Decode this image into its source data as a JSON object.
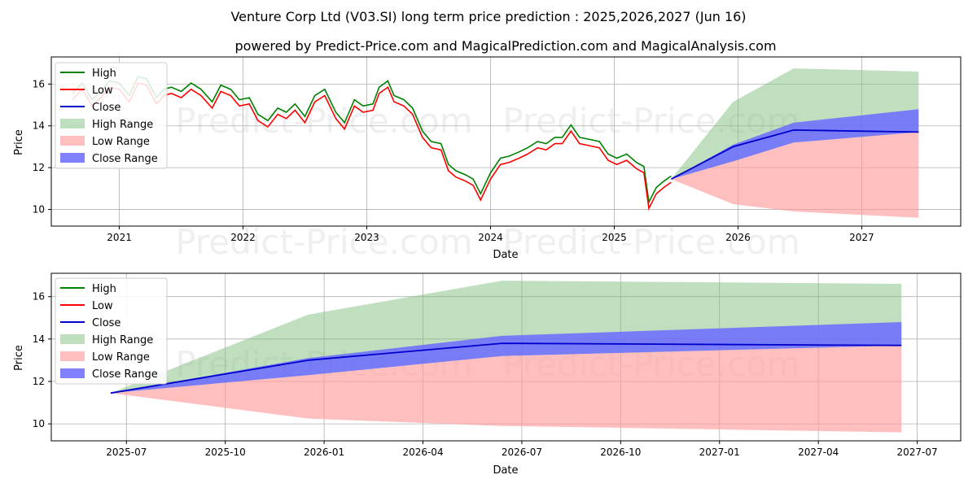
{
  "title": "Venture Corp Ltd (V03.SI) long term price prediction : 2025,2026,2027 (Jun 16)",
  "subtitle": "powered by Predict-Price.com and MagicalPrediction.com and MagicalAnalysis.com",
  "watermark": "Predict-Price.com",
  "colors": {
    "high": "#008000",
    "low": "#ff0000",
    "close": "#0000cc",
    "high_range": "#7fbf7f",
    "low_range": "#ff9c9c",
    "close_range": "#6b6bff"
  },
  "legend": [
    "High",
    "Low",
    "Close",
    "High Range",
    "Low Range",
    "Close Range"
  ],
  "chart_data": [
    {
      "type": "line",
      "panel": "top",
      "xlabel": "Date",
      "ylabel": "Price",
      "xlim": [
        2020.45,
        2027.8
      ],
      "ylim": [
        9.2,
        17.3
      ],
      "x_ticks": [
        2021,
        2022,
        2023,
        2024,
        2025,
        2026,
        2027
      ],
      "x_tick_labels": [
        "2021",
        "2022",
        "2023",
        "2024",
        "2025",
        "2026",
        "2027"
      ],
      "y_ticks": [
        10,
        12,
        14,
        16
      ],
      "history_close": {
        "x": [
          2020.62,
          2020.7,
          2020.78,
          2020.85,
          2020.92,
          2021.0,
          2021.08,
          2021.15,
          2021.22,
          2021.3,
          2021.36,
          2021.42,
          2021.5,
          2021.58,
          2021.66,
          2021.75,
          2021.82,
          2021.9,
          2021.97,
          2022.05,
          2022.12,
          2022.2,
          2022.28,
          2022.35,
          2022.42,
          2022.5,
          2022.58,
          2022.66,
          2022.75,
          2022.82,
          2022.9,
          2022.97,
          2023.05,
          2023.1,
          2023.17,
          2023.22,
          2023.3,
          2023.37,
          2023.45,
          2023.52,
          2023.6,
          2023.66,
          2023.72,
          2023.8,
          2023.86,
          2023.92,
          2024.0,
          2024.08,
          2024.15,
          2024.23,
          2024.3,
          2024.38,
          2024.45,
          2024.52,
          2024.58,
          2024.65,
          2024.72,
          2024.8,
          2024.88,
          2024.95,
          2025.02,
          2025.1,
          2025.18,
          2025.24,
          2025.28,
          2025.34,
          2025.4,
          2025.46
        ],
        "y": [
          15.4,
          15.9,
          15.1,
          15.5,
          16.0,
          15.9,
          15.3,
          16.2,
          16.1,
          15.2,
          15.6,
          15.7,
          15.5,
          15.9,
          15.6,
          15.0,
          15.8,
          15.6,
          15.1,
          15.2,
          14.4,
          14.1,
          14.7,
          14.5,
          14.9,
          14.3,
          15.3,
          15.6,
          14.5,
          14.0,
          15.1,
          14.8,
          14.9,
          15.7,
          16.0,
          15.3,
          15.1,
          14.7,
          13.6,
          13.1,
          13.0,
          12.0,
          11.7,
          11.5,
          11.3,
          10.6,
          11.6,
          12.3,
          12.4,
          12.6,
          12.8,
          13.1,
          13.0,
          13.3,
          13.3,
          13.9,
          13.3,
          13.2,
          13.1,
          12.5,
          12.3,
          12.5,
          12.1,
          11.9,
          10.2,
          10.9,
          11.2,
          11.45
        ]
      },
      "forecast": {
        "x": [
          2025.46,
          2025.96,
          2026.45,
          2027.46
        ],
        "close": [
          11.45,
          13.0,
          13.8,
          13.7
        ],
        "high_range": {
          "upper": [
            11.45,
            15.15,
            16.75,
            16.6
          ],
          "lower": [
            11.45,
            12.3,
            13.2,
            13.7
          ]
        },
        "low_range": {
          "upper": [
            11.45,
            12.3,
            13.2,
            13.7
          ],
          "lower": [
            11.45,
            10.25,
            9.9,
            9.6
          ]
        },
        "close_range": {
          "upper": [
            11.45,
            13.1,
            14.15,
            14.8
          ],
          "lower": [
            11.45,
            12.3,
            13.2,
            13.7
          ]
        }
      }
    },
    {
      "type": "area",
      "panel": "bottom",
      "xlabel": "Date",
      "ylabel": "Price",
      "xlim": [
        2025.31,
        2027.61
      ],
      "ylim": [
        9.2,
        17.1
      ],
      "x_ticks": [
        2025.5,
        2025.75,
        2026.0,
        2026.25,
        2026.5,
        2026.75,
        2027.0,
        2027.25,
        2027.5
      ],
      "x_tick_labels": [
        "2025-07",
        "2025-10",
        "2026-01",
        "2026-04",
        "2026-07",
        "2026-10",
        "2027-01",
        "2027-04",
        "2027-07"
      ],
      "y_ticks": [
        10,
        12,
        14,
        16
      ],
      "forecast": {
        "x": [
          2025.46,
          2025.96,
          2026.45,
          2027.46
        ],
        "close": [
          11.45,
          13.0,
          13.8,
          13.7
        ],
        "high_upper": [
          11.45,
          15.15,
          16.75,
          16.6
        ],
        "close_upper": [
          11.45,
          13.1,
          14.15,
          14.8
        ],
        "split": [
          11.45,
          12.3,
          13.2,
          13.7
        ],
        "low_lower": [
          11.45,
          10.25,
          9.9,
          9.6
        ]
      }
    }
  ]
}
